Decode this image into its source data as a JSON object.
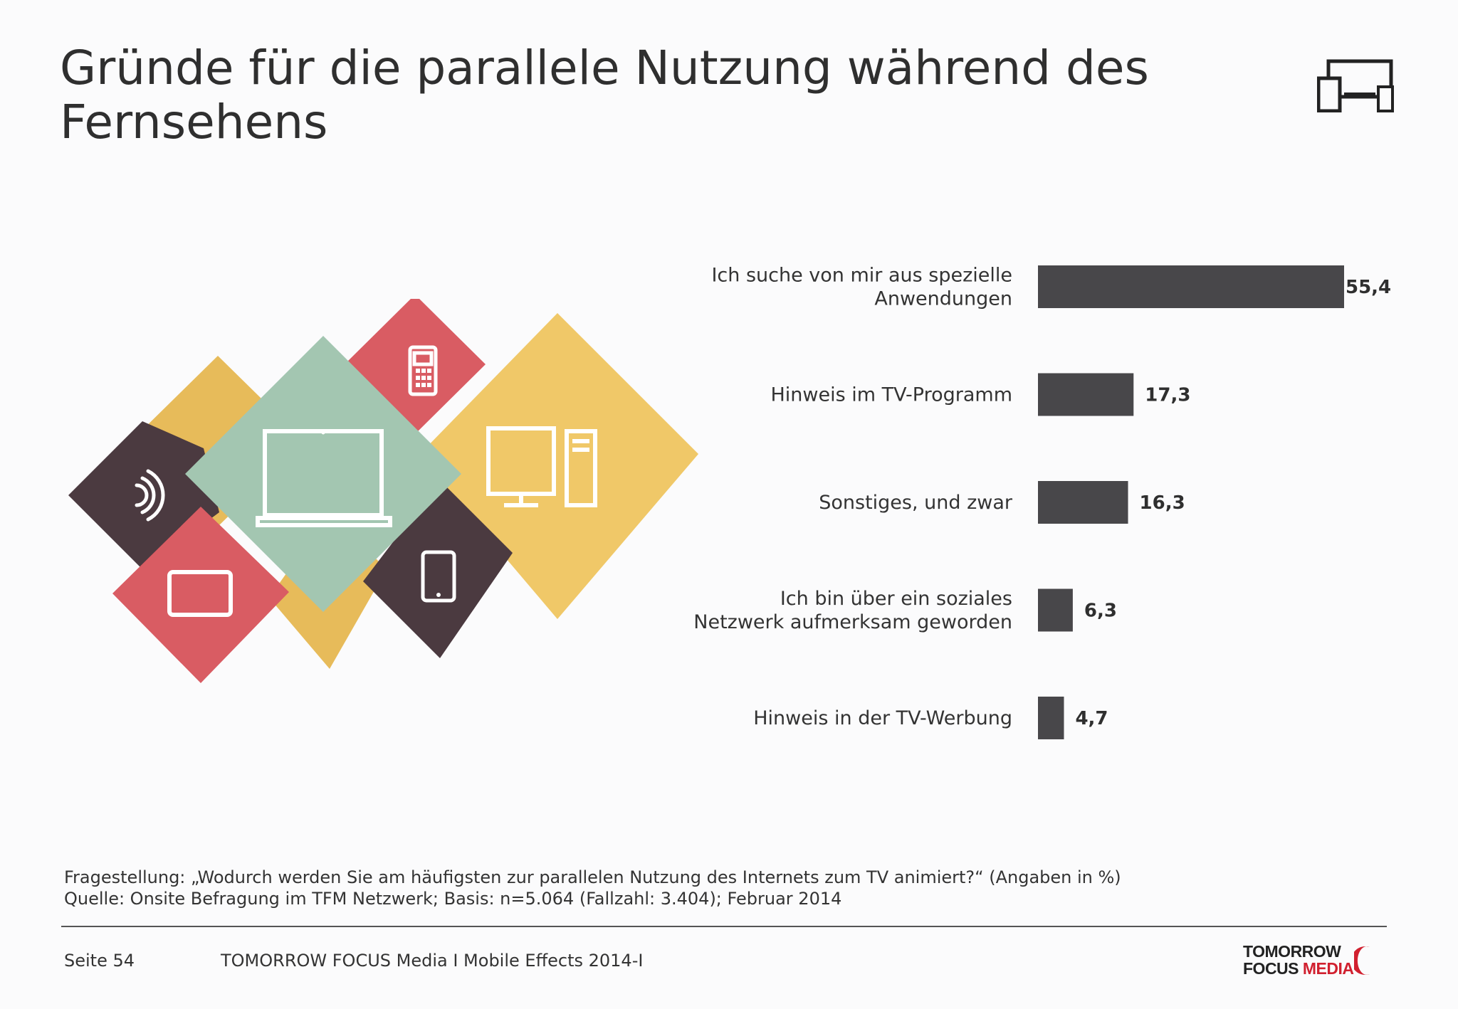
{
  "title": "Gründe für die parallele Nutzung während des Fernsehens",
  "chart_data": {
    "type": "bar",
    "orientation": "horizontal",
    "categories": [
      [
        "Ich suche von mir aus spezielle",
        "Anwendungen"
      ],
      [
        "Hinweis im TV-Programm"
      ],
      [
        "Sonstiges, und zwar"
      ],
      [
        "Ich bin über ein soziales",
        "Netzwerk aufmerksam geworden"
      ],
      [
        "Hinweis in der TV-Werbung"
      ]
    ],
    "values": [
      55.4,
      17.3,
      16.3,
      6.3,
      4.7
    ],
    "value_labels": [
      "55,4",
      "17,3",
      "16,3",
      "6,3",
      "4,7"
    ],
    "bar_color": "#48474a",
    "xlim": [
      0,
      55.4
    ],
    "grid": false,
    "legend": "none"
  },
  "illustration": {
    "icons": [
      "wifi-icon",
      "tablet-icon",
      "laptop-icon",
      "mobile-phone-icon",
      "smartphone-icon",
      "monitor-icon",
      "desktop-tower-icon"
    ],
    "colors": {
      "yellow": "#ecc464",
      "green": "#a3c6b1",
      "red": "#d95c63",
      "dark": "#4b3a40"
    }
  },
  "footnote": {
    "question": "Fragestellung: „Wodurch werden Sie am häufigsten zur parallelen Nutzung des Internets zum TV animiert?“ (Angaben in %)",
    "source": "Quelle: Onsite Befragung im TFM Netzwerk; Basis: n=5.064 (Fallzahl: 3.404); Februar 2014"
  },
  "footer": {
    "page": "Seite 54",
    "publication": "TOMORROW FOCUS Media  I  Mobile Effects 2014-I",
    "logo_line1": "TOMORROW",
    "logo_focus": "FOCUS",
    "logo_media": "MEDIA"
  },
  "colors": {
    "accent": "#d1202f",
    "text": "#333333",
    "bar": "#48474a"
  }
}
